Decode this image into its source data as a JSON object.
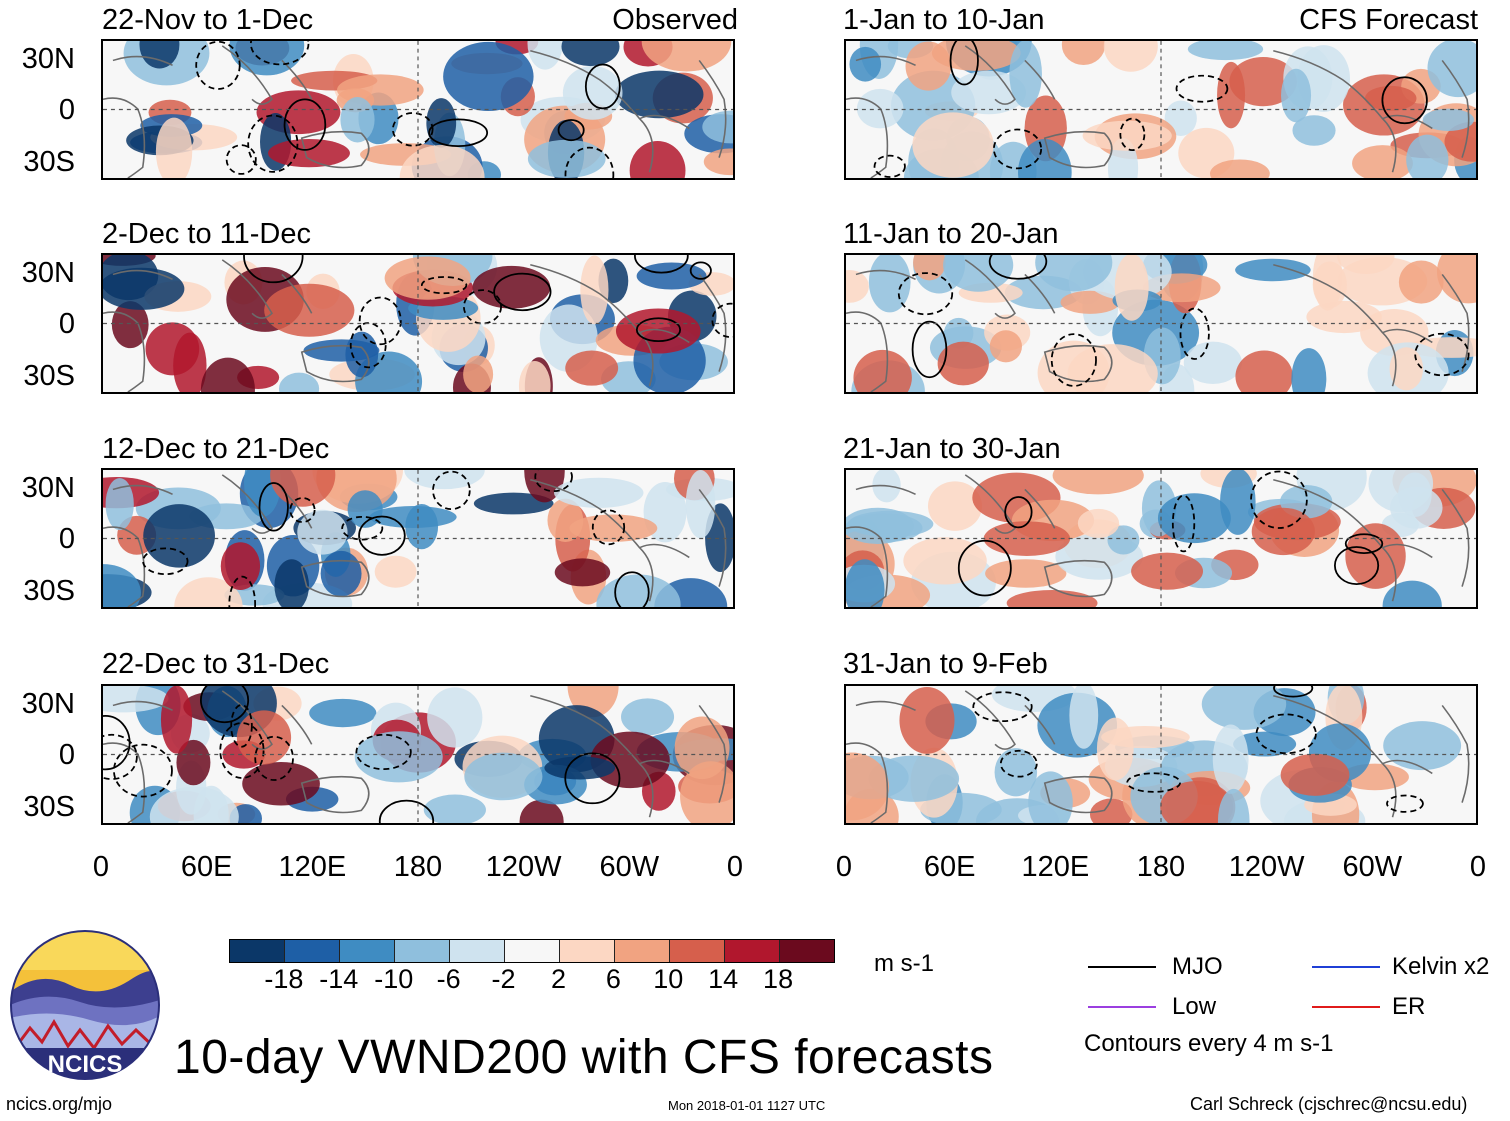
{
  "chart_data": {
    "type": "heatmap",
    "title": "10-day VWND200 with CFS forecasts",
    "variable": "VWND200",
    "units": "m s-1",
    "columns": [
      {
        "label": "Observed",
        "panels": [
          "22-Nov to 1-Dec",
          "2-Dec to 11-Dec",
          "12-Dec to 21-Dec",
          "22-Dec to 31-Dec"
        ]
      },
      {
        "label": "CFS Forecast",
        "panels": [
          "1-Jan to 10-Jan",
          "11-Jan to 20-Jan",
          "21-Jan to 30-Jan",
          "31-Jan to 9-Feb"
        ]
      }
    ],
    "xticks": [
      "0",
      "60E",
      "120E",
      "180",
      "120W",
      "60W",
      "0"
    ],
    "xrange": [
      0,
      360
    ],
    "yticks": [
      "30N",
      "0",
      "30S"
    ],
    "yrange": [
      -40,
      40
    ],
    "colorbar": {
      "levels": [
        "-18",
        "-14",
        "-10",
        "-6",
        "-2",
        "2",
        "6",
        "10",
        "14",
        "18"
      ],
      "colors": [
        "#0b3768",
        "#1e5fa6",
        "#3f8cc2",
        "#8fbfdd",
        "#cfe3ef",
        "#f7f7f7",
        "#fcd7c3",
        "#f1a381",
        "#d65f4c",
        "#b1172d",
        "#6b0a1e"
      ]
    },
    "legend": [
      {
        "name": "MJO",
        "color": "#000000"
      },
      {
        "name": "Kelvin x2",
        "color": "#1f3fd6"
      },
      {
        "name": "Low",
        "color": "#9b3fe0"
      },
      {
        "name": "ER",
        "color": "#e01b1b"
      }
    ],
    "contour_note": "Contours every 4 m s-1"
  },
  "footer": {
    "left": "ncics.org/mjo",
    "center": "Mon 2018-01-01 1127 UTC",
    "right": "Carl Schreck (cjschrec@ncsu.edu)"
  },
  "logo": {
    "text": "NCICS"
  }
}
